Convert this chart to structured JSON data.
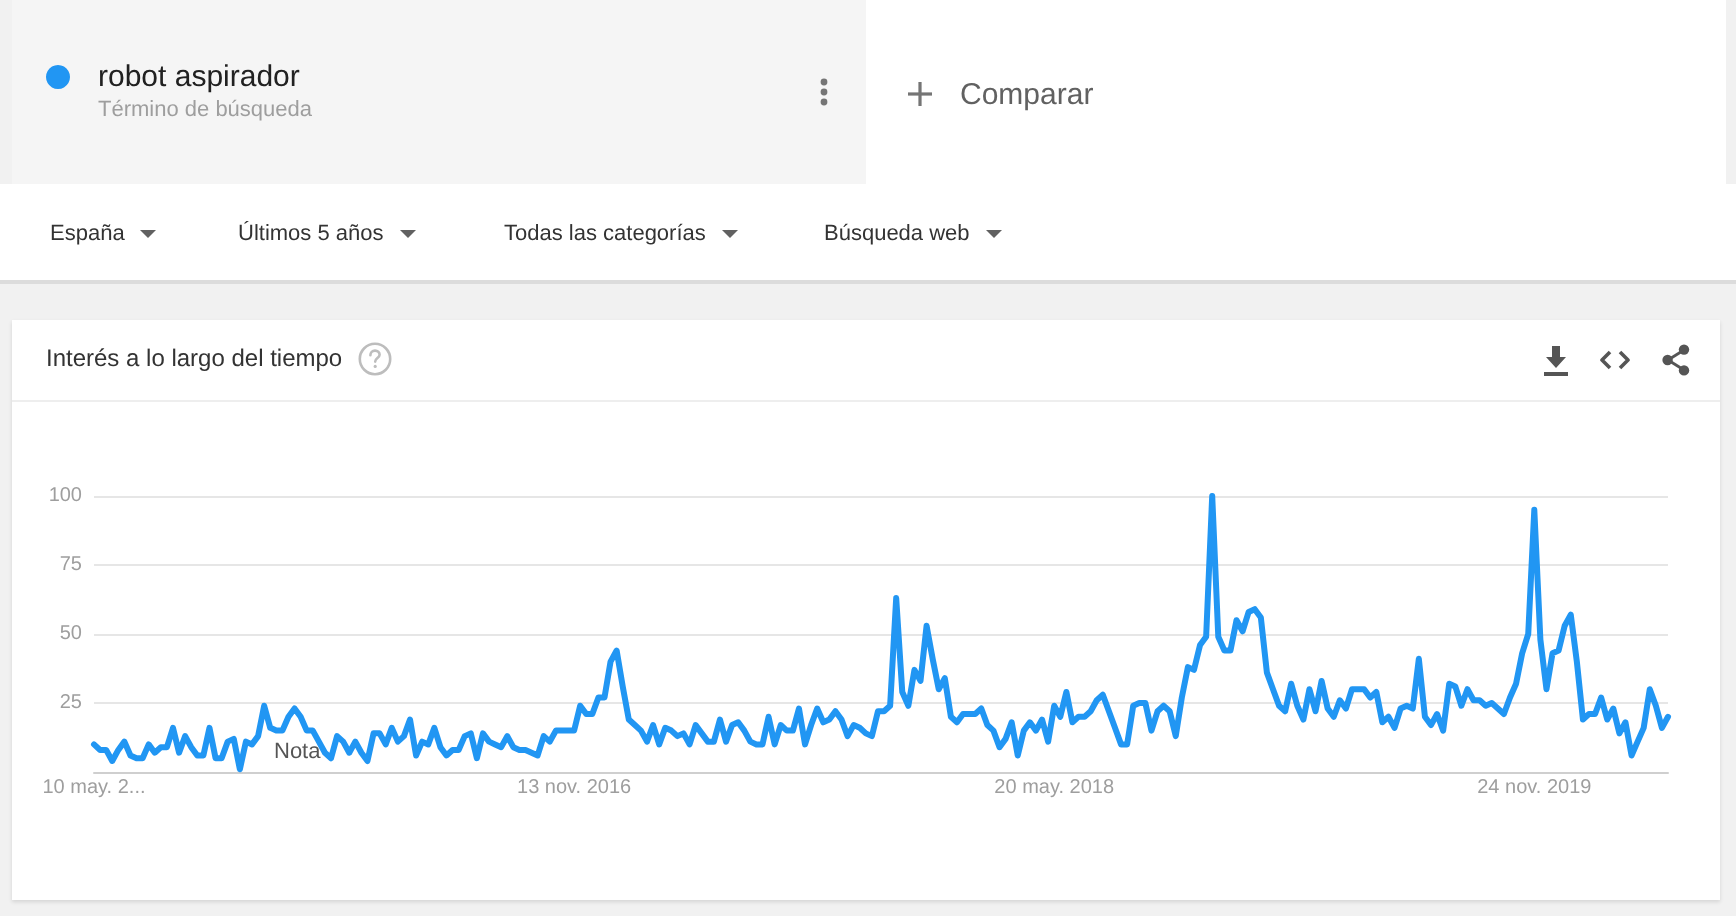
{
  "chart_data": {
    "type": "line",
    "title": "Interés a lo largo del tiempo",
    "annotations": [
      "Término de búsqueda",
      "Comparar",
      "España",
      "Últimos 5 años",
      "Todas las categorías",
      "Búsqueda web",
      "Nota"
    ],
    "legend": "top left",
    "grid": "y",
    "xlim": [
      "2015-05-10",
      "2020-04-26"
    ],
    "xticks": [
      {
        "value": "2015-05-10",
        "label": "10 may. 2..."
      },
      {
        "value": "2016-11-13",
        "label": "13 nov. 2016"
      },
      {
        "value": "2018-05-20",
        "label": "20 may. 2018"
      },
      {
        "value": "2019-11-24",
        "label": "24 nov. 2019"
      }
    ],
    "ylim": [
      0,
      100
    ],
    "yticks": [
      25,
      50,
      75,
      100
    ],
    "x": [
      "2015-05-10",
      "2015-05-17",
      "2015-05-24",
      "2015-05-31",
      "2015-06-07",
      "2015-06-14",
      "2015-06-21",
      "2015-06-28",
      "2015-07-05",
      "2015-07-12",
      "2015-07-19",
      "2015-07-26",
      "2015-08-02",
      "2015-08-09",
      "2015-08-16",
      "2015-08-23",
      "2015-08-30",
      "2015-09-06",
      "2015-09-13",
      "2015-09-20",
      "2015-09-27",
      "2015-10-04",
      "2015-10-11",
      "2015-10-18",
      "2015-10-25",
      "2015-11-01",
      "2015-11-08",
      "2015-11-15",
      "2015-11-22",
      "2015-11-29",
      "2015-12-06",
      "2015-12-13",
      "2015-12-20",
      "2015-12-27",
      "2016-01-03",
      "2016-01-10",
      "2016-01-17",
      "2016-01-24",
      "2016-01-31",
      "2016-02-07",
      "2016-02-14",
      "2016-02-21",
      "2016-02-28",
      "2016-03-06",
      "2016-03-13",
      "2016-03-20",
      "2016-03-27",
      "2016-04-03",
      "2016-04-10",
      "2016-04-17",
      "2016-04-24",
      "2016-05-01",
      "2016-05-08",
      "2016-05-15",
      "2016-05-22",
      "2016-05-29",
      "2016-06-05",
      "2016-06-12",
      "2016-06-19",
      "2016-06-26",
      "2016-07-03",
      "2016-07-10",
      "2016-07-17",
      "2016-07-24",
      "2016-07-31",
      "2016-08-07",
      "2016-08-14",
      "2016-08-21",
      "2016-08-28",
      "2016-09-04",
      "2016-09-11",
      "2016-09-18",
      "2016-09-25",
      "2016-10-02",
      "2016-10-09",
      "2016-10-16",
      "2016-10-23",
      "2016-10-30",
      "2016-11-06",
      "2016-11-13",
      "2016-11-20",
      "2016-11-27",
      "2016-12-04",
      "2016-12-11",
      "2016-12-18",
      "2016-12-25",
      "2017-01-01",
      "2017-01-08",
      "2017-01-15",
      "2017-01-22",
      "2017-01-29",
      "2017-02-05",
      "2017-02-12",
      "2017-02-19",
      "2017-02-26",
      "2017-03-05",
      "2017-03-12",
      "2017-03-19",
      "2017-03-26",
      "2017-04-02",
      "2017-04-09",
      "2017-04-16",
      "2017-04-23",
      "2017-04-30",
      "2017-05-07",
      "2017-05-14",
      "2017-05-21",
      "2017-05-28",
      "2017-06-04",
      "2017-06-11",
      "2017-06-18",
      "2017-06-25",
      "2017-07-02",
      "2017-07-09",
      "2017-07-16",
      "2017-07-23",
      "2017-07-30",
      "2017-08-06",
      "2017-08-13",
      "2017-08-20",
      "2017-08-27",
      "2017-09-03",
      "2017-09-10",
      "2017-09-17",
      "2017-09-24",
      "2017-10-01",
      "2017-10-08",
      "2017-10-15",
      "2017-10-22",
      "2017-10-29",
      "2017-11-05",
      "2017-11-12",
      "2017-11-19",
      "2017-11-26",
      "2017-12-03",
      "2017-12-10",
      "2017-12-17",
      "2017-12-24",
      "2017-12-31",
      "2018-01-07",
      "2018-01-14",
      "2018-01-21",
      "2018-01-28",
      "2018-02-04",
      "2018-02-11",
      "2018-02-18",
      "2018-02-25",
      "2018-03-04",
      "2018-03-11",
      "2018-03-18",
      "2018-03-25",
      "2018-04-01",
      "2018-04-08",
      "2018-04-15",
      "2018-04-22",
      "2018-04-29",
      "2018-05-06",
      "2018-05-13",
      "2018-05-20",
      "2018-05-27",
      "2018-06-03",
      "2018-06-10",
      "2018-06-17",
      "2018-06-24",
      "2018-07-01",
      "2018-07-08",
      "2018-07-15",
      "2018-07-22",
      "2018-07-29",
      "2018-08-05",
      "2018-08-12",
      "2018-08-19",
      "2018-08-26",
      "2018-09-02",
      "2018-09-09",
      "2018-09-16",
      "2018-09-23",
      "2018-09-30",
      "2018-10-07",
      "2018-10-14",
      "2018-10-21",
      "2018-10-28",
      "2018-11-04",
      "2018-11-11",
      "2018-11-18",
      "2018-11-25",
      "2018-12-02",
      "2018-12-09",
      "2018-12-16",
      "2018-12-23",
      "2018-12-30",
      "2019-01-06",
      "2019-01-13",
      "2019-01-20",
      "2019-01-27",
      "2019-02-03",
      "2019-02-10",
      "2019-02-17",
      "2019-02-24",
      "2019-03-03",
      "2019-03-10",
      "2019-03-17",
      "2019-03-24",
      "2019-03-31",
      "2019-04-07",
      "2019-04-14",
      "2019-04-21",
      "2019-04-28",
      "2019-05-05",
      "2019-05-12",
      "2019-05-19",
      "2019-05-26",
      "2019-06-02",
      "2019-06-09",
      "2019-06-16",
      "2019-06-23",
      "2019-06-30",
      "2019-07-07",
      "2019-07-14",
      "2019-07-21",
      "2019-07-28",
      "2019-08-04",
      "2019-08-11",
      "2019-08-18",
      "2019-08-25",
      "2019-09-01",
      "2019-09-08",
      "2019-09-15",
      "2019-09-22",
      "2019-09-29",
      "2019-10-06",
      "2019-10-13",
      "2019-10-20",
      "2019-10-27",
      "2019-11-03",
      "2019-11-10",
      "2019-11-17",
      "2019-11-24",
      "2019-12-01",
      "2019-12-08",
      "2019-12-15",
      "2019-12-22",
      "2019-12-29",
      "2020-01-05",
      "2020-01-12",
      "2020-01-19",
      "2020-01-26",
      "2020-02-02",
      "2020-02-09",
      "2020-02-16",
      "2020-02-23",
      "2020-03-01",
      "2020-03-08",
      "2020-03-15",
      "2020-03-22",
      "2020-03-29",
      "2020-04-05",
      "2020-04-12",
      "2020-04-19",
      "2020-04-26"
    ],
    "series": [
      {
        "name": "robot aspirador",
        "color": "#2196f3",
        "values": [
          10,
          8,
          8,
          4,
          8,
          11,
          6,
          5,
          5,
          10,
          7,
          9,
          9,
          16,
          7,
          13,
          9,
          6,
          6,
          16,
          5,
          5,
          11,
          12,
          1,
          11,
          10,
          13,
          24,
          16,
          15,
          15,
          20,
          23,
          20,
          15,
          15,
          11,
          7,
          5,
          13,
          11,
          7,
          11,
          7,
          4,
          14,
          14,
          10,
          16,
          11,
          13,
          19,
          6,
          11,
          10,
          16,
          9,
          6,
          8,
          8,
          13,
          14,
          5,
          14,
          11,
          10,
          9,
          13,
          9,
          8,
          8,
          7,
          6,
          13,
          11,
          15,
          15,
          15,
          15,
          24,
          21,
          21,
          27,
          27,
          40,
          44,
          31,
          19,
          17,
          15,
          11,
          17,
          10,
          16,
          15,
          13,
          14,
          10,
          17,
          14,
          11,
          11,
          19,
          11,
          17,
          18,
          15,
          11,
          10,
          10,
          20,
          10,
          17,
          15,
          15,
          23,
          10,
          17,
          23,
          18,
          19,
          22,
          19,
          13,
          17,
          16,
          14,
          13,
          22,
          22,
          24,
          63,
          29,
          24,
          37,
          33,
          53,
          41,
          30,
          34,
          20,
          18,
          21,
          21,
          21,
          23,
          17,
          15,
          9,
          12,
          18,
          6,
          15,
          18,
          15,
          19,
          11,
          24,
          20,
          29,
          18,
          20,
          20,
          22,
          26,
          28,
          22,
          16,
          10,
          10,
          24,
          25,
          25,
          15,
          22,
          24,
          22,
          13,
          27,
          38,
          37,
          46,
          49,
          100,
          49,
          44,
          44,
          55,
          51,
          58,
          59,
          56,
          36,
          30,
          24,
          22,
          32,
          24,
          19,
          30,
          22,
          33,
          23,
          20,
          26,
          23,
          30,
          30,
          30,
          27,
          29,
          18,
          20,
          16,
          23,
          24,
          23,
          41,
          20,
          17,
          21,
          15,
          32,
          31,
          24,
          30,
          26,
          26,
          24,
          25,
          23,
          21,
          27,
          32,
          43,
          50,
          95,
          48,
          30,
          43,
          44,
          53,
          57,
          40,
          19,
          21,
          21,
          27,
          19,
          23,
          14,
          18,
          6,
          11,
          16,
          30,
          24,
          16,
          20
        ]
      }
    ]
  }
}
